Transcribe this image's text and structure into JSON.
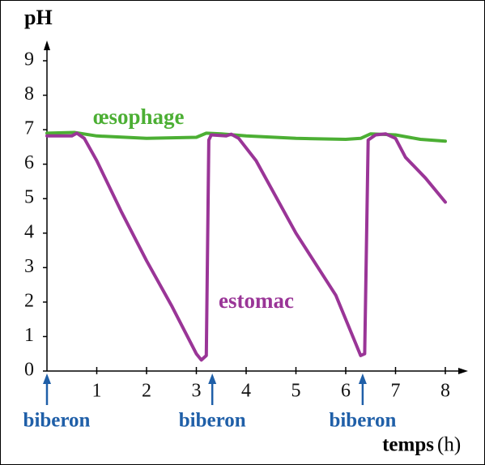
{
  "chart_data": {
    "type": "line",
    "ylabel": "pH",
    "xlabel": "temps",
    "xunit": "(h)",
    "xlim": [
      0,
      8
    ],
    "ylim": [
      0,
      9
    ],
    "xticks": [
      1,
      2,
      3,
      4,
      5,
      6,
      7,
      8
    ],
    "yticks": [
      0,
      1,
      2,
      3,
      4,
      5,
      6,
      7,
      8,
      9
    ],
    "series": [
      {
        "name": "œsophage",
        "color": "#4caf34",
        "x": [
          0,
          0.55,
          1,
          2,
          3,
          3.2,
          3.5,
          4,
          5,
          6,
          6.3,
          6.5,
          7,
          7.5,
          8
        ],
        "values": [
          6.9,
          6.92,
          6.82,
          6.75,
          6.78,
          6.9,
          6.88,
          6.82,
          6.75,
          6.72,
          6.75,
          6.88,
          6.85,
          6.72,
          6.67
        ]
      },
      {
        "name": "estomac",
        "color": "#9a3597",
        "x": [
          0,
          0.5,
          0.6,
          0.75,
          1,
          1.5,
          2,
          2.5,
          3,
          3.1,
          3.2,
          3.25,
          3.3,
          3.6,
          3.7,
          3.85,
          4.2,
          5,
          5.8,
          6.2,
          6.3,
          6.38,
          6.45,
          6.6,
          6.8,
          7,
          7.2,
          7.6,
          8
        ],
        "values": [
          6.82,
          6.82,
          6.9,
          6.75,
          6.1,
          4.6,
          3.2,
          1.9,
          0.5,
          0.32,
          0.45,
          6.7,
          6.85,
          6.82,
          6.87,
          6.75,
          6.1,
          4.0,
          2.2,
          0.8,
          0.45,
          0.5,
          6.7,
          6.85,
          6.88,
          6.75,
          6.2,
          5.6,
          4.9
        ]
      }
    ],
    "annotations": [
      {
        "text": "biberon",
        "x": 0
      },
      {
        "text": "biberon",
        "x": 3.32
      },
      {
        "text": "biberon",
        "x": 6.34
      }
    ]
  }
}
